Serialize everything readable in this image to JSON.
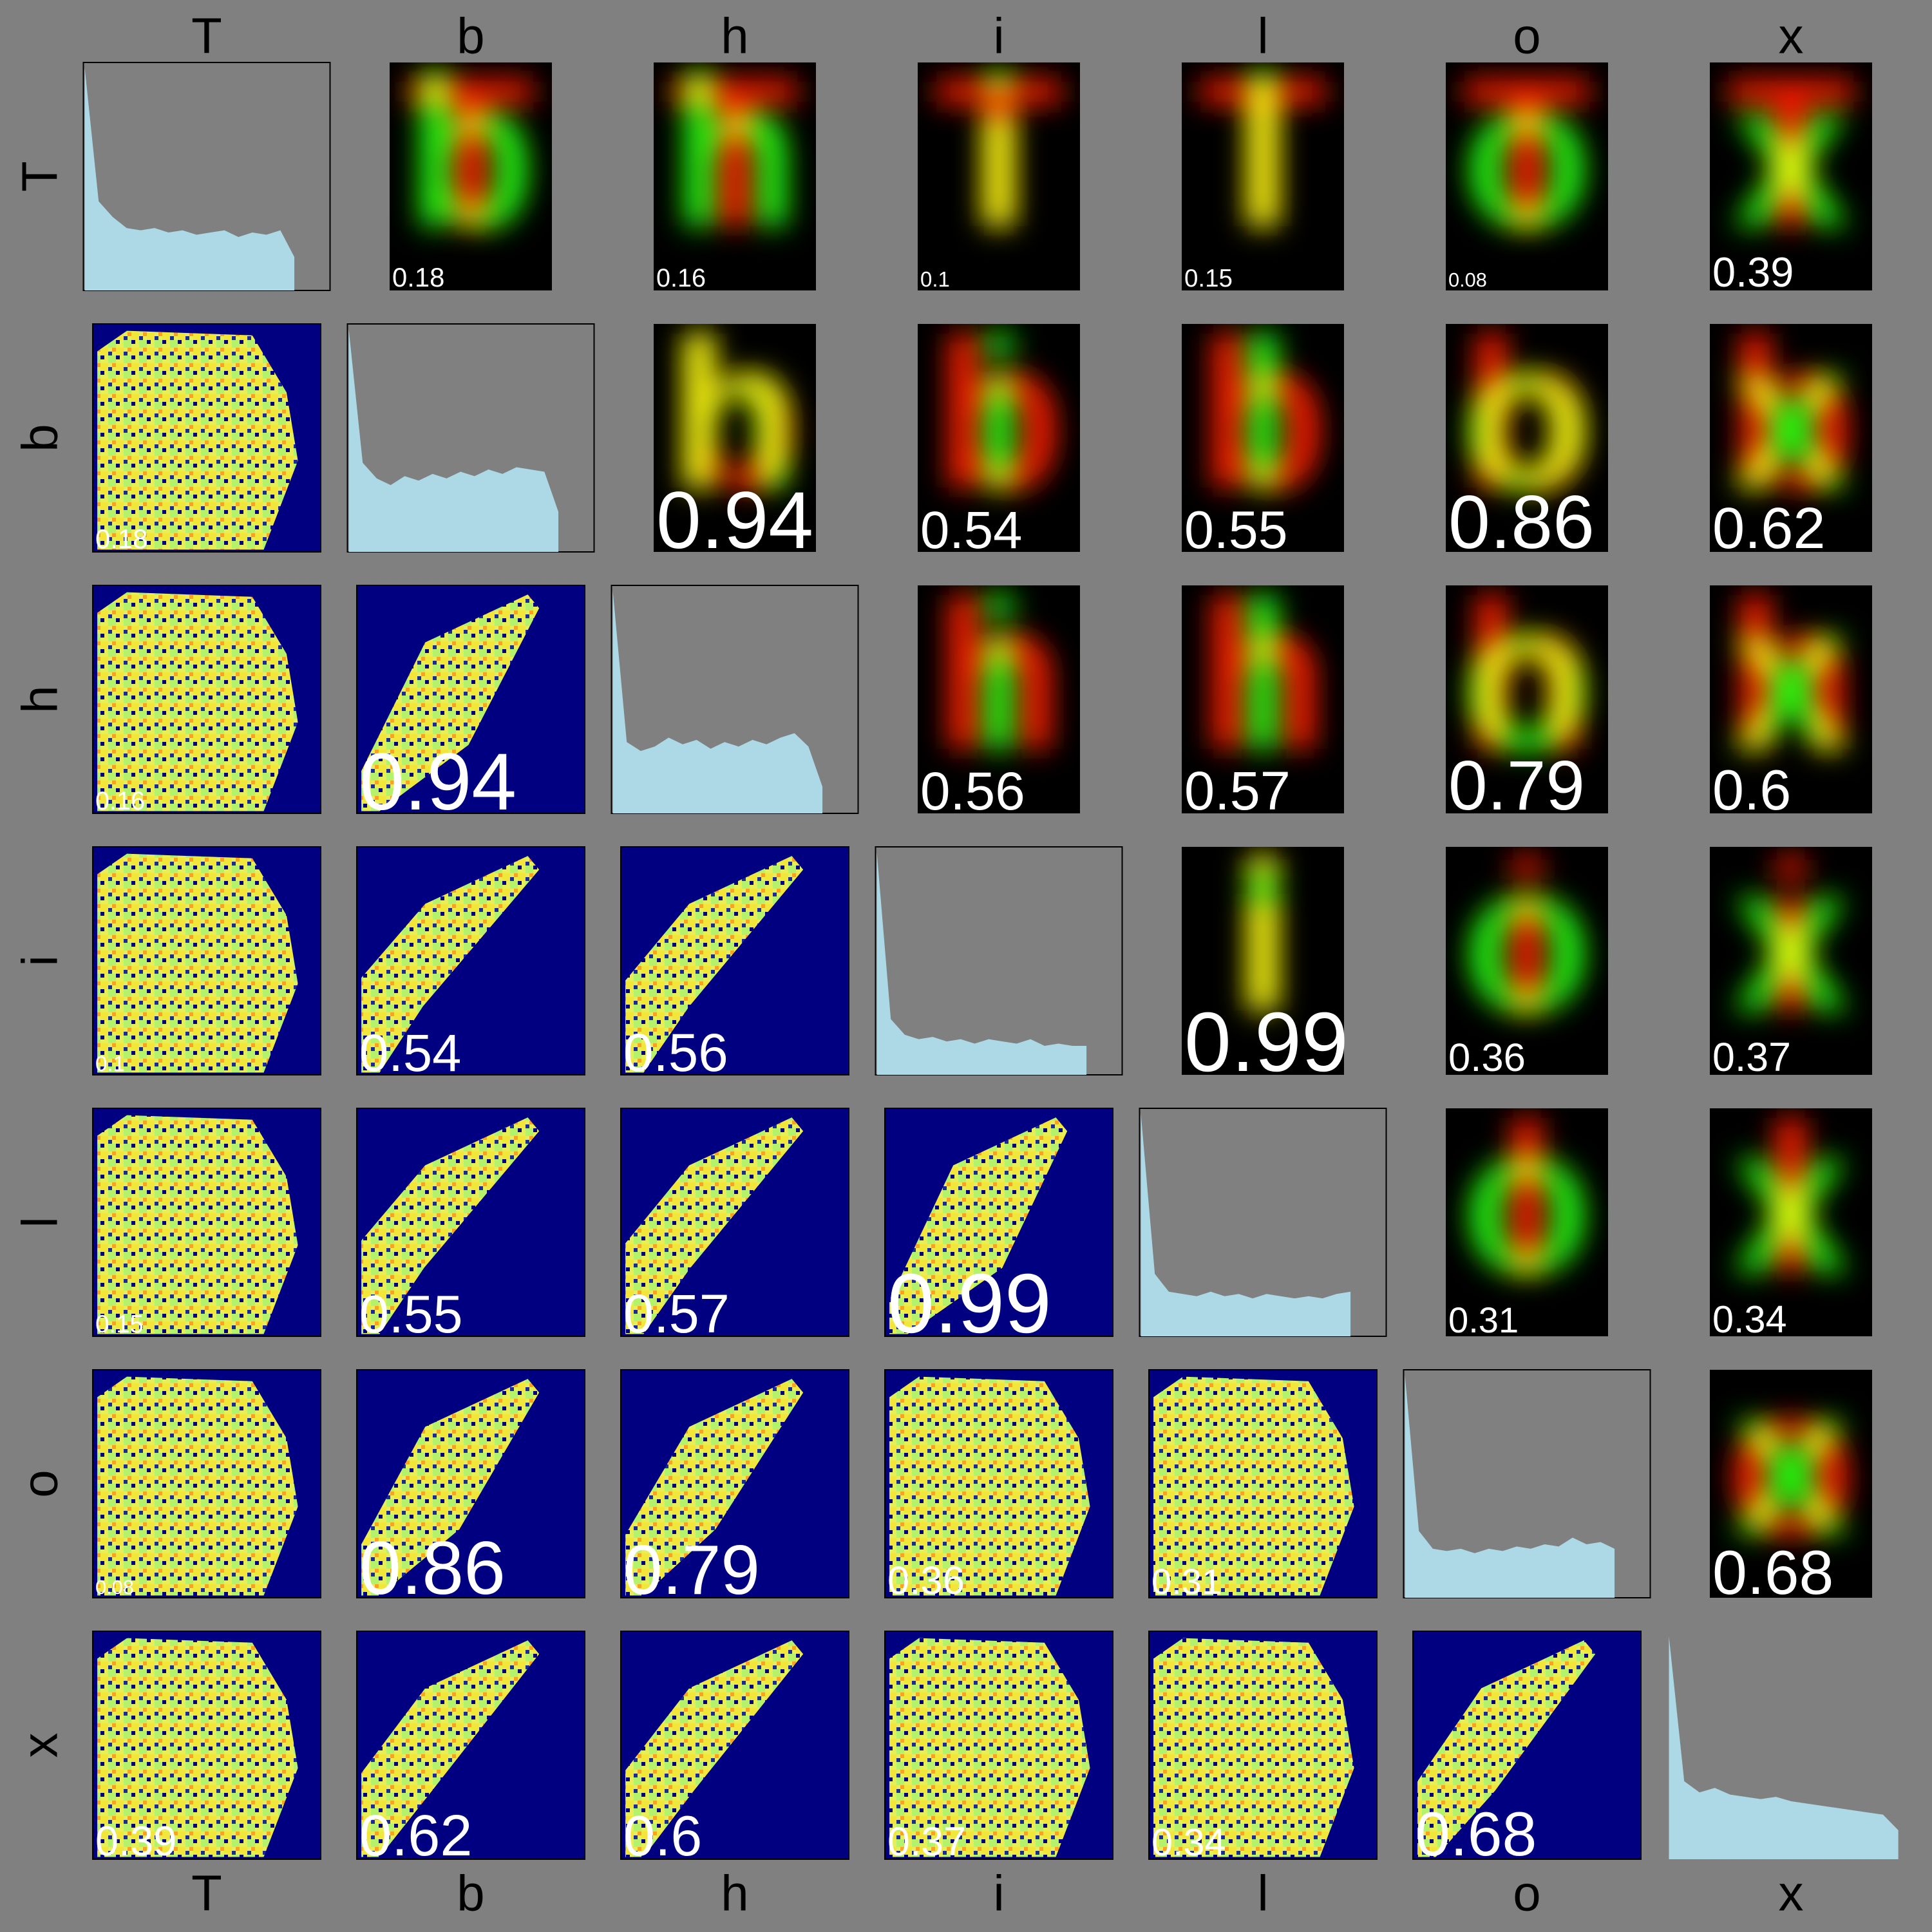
{
  "chart_data": {
    "type": "pairs",
    "labels": [
      "T",
      "b",
      "h",
      "i",
      "l",
      "o",
      "x"
    ],
    "correlations": [
      [
        null,
        0.18,
        0.16,
        0.1,
        0.15,
        0.08,
        0.39
      ],
      [
        0.18,
        null,
        0.94,
        0.54,
        0.55,
        0.86,
        0.62
      ],
      [
        0.16,
        0.94,
        null,
        0.56,
        0.57,
        0.79,
        0.6
      ],
      [
        0.1,
        0.54,
        0.56,
        null,
        0.99,
        0.36,
        0.37
      ],
      [
        0.15,
        0.55,
        0.57,
        0.99,
        null,
        0.31,
        0.34
      ],
      [
        0.08,
        0.86,
        0.79,
        0.36,
        0.31,
        null,
        0.68
      ],
      [
        0.39,
        0.62,
        0.6,
        0.37,
        0.34,
        0.68,
        null
      ]
    ],
    "histograms": [
      [
        1,
        0.4,
        0.33,
        0.28,
        0.27,
        0.28,
        0.26,
        0.27,
        0.25,
        0.26,
        0.27,
        0.24,
        0.26,
        0.25,
        0.27,
        0.15
      ],
      [
        1,
        0.4,
        0.33,
        0.3,
        0.34,
        0.32,
        0.35,
        0.33,
        0.36,
        0.34,
        0.37,
        0.35,
        0.38,
        0.37,
        0.36,
        0.18
      ],
      [
        1,
        0.32,
        0.28,
        0.3,
        0.34,
        0.31,
        0.33,
        0.29,
        0.32,
        0.3,
        0.33,
        0.31,
        0.34,
        0.36,
        0.3,
        0.12
      ],
      [
        1,
        0.25,
        0.18,
        0.16,
        0.17,
        0.15,
        0.16,
        0.14,
        0.16,
        0.15,
        0.14,
        0.16,
        0.13,
        0.14,
        0.13,
        0.13
      ],
      [
        1,
        0.28,
        0.2,
        0.19,
        0.18,
        0.2,
        0.18,
        0.19,
        0.17,
        0.19,
        0.18,
        0.17,
        0.18,
        0.17,
        0.19,
        0.2
      ],
      [
        1,
        0.3,
        0.22,
        0.21,
        0.22,
        0.2,
        0.22,
        0.21,
        0.23,
        0.22,
        0.24,
        0.23,
        0.27,
        0.24,
        0.25,
        0.22
      ],
      [
        1,
        0.35,
        0.3,
        0.32,
        0.29,
        0.28,
        0.27,
        0.28,
        0.26,
        0.25,
        0.24,
        0.23,
        0.22,
        0.21,
        0.2,
        0.13
      ]
    ]
  }
}
